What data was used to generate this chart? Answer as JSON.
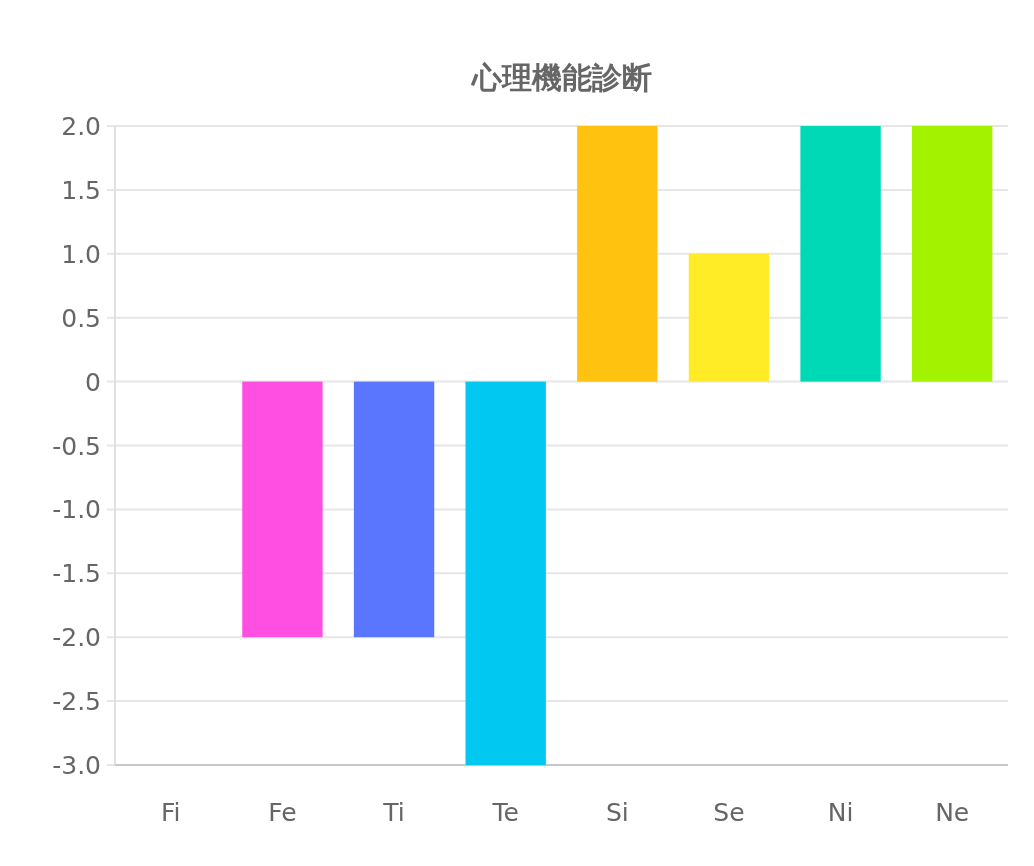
{
  "chart_data": {
    "type": "bar",
    "title": "心理機能診断",
    "categories": [
      "Fi",
      "Fe",
      "Ti",
      "Te",
      "Si",
      "Se",
      "Ni",
      "Ne"
    ],
    "values": [
      0,
      -2,
      -2,
      -3,
      2,
      1,
      2,
      2
    ],
    "colors": [
      "#ff6384",
      "#ff4fe3",
      "#5a76ff",
      "#00c8f0",
      "#ffc20e",
      "#ffec26",
      "#00d9b6",
      "#a3f200"
    ],
    "ylim": [
      -3,
      2
    ],
    "yticks": [
      {
        "value": 2,
        "label": "2.0"
      },
      {
        "value": 1.5,
        "label": "1.5"
      },
      {
        "value": 1,
        "label": "1.0"
      },
      {
        "value": 0.5,
        "label": "0.5"
      },
      0,
      {
        "value": -0.5,
        "label": "-0.5"
      },
      {
        "value": -1,
        "label": "-1.0"
      },
      {
        "value": -1.5,
        "label": "-1.5"
      },
      {
        "value": -2,
        "label": "-2.0"
      },
      {
        "value": -2.5,
        "label": "-2.5"
      },
      {
        "value": -3,
        "label": "-3.0"
      }
    ],
    "grid": "y"
  }
}
